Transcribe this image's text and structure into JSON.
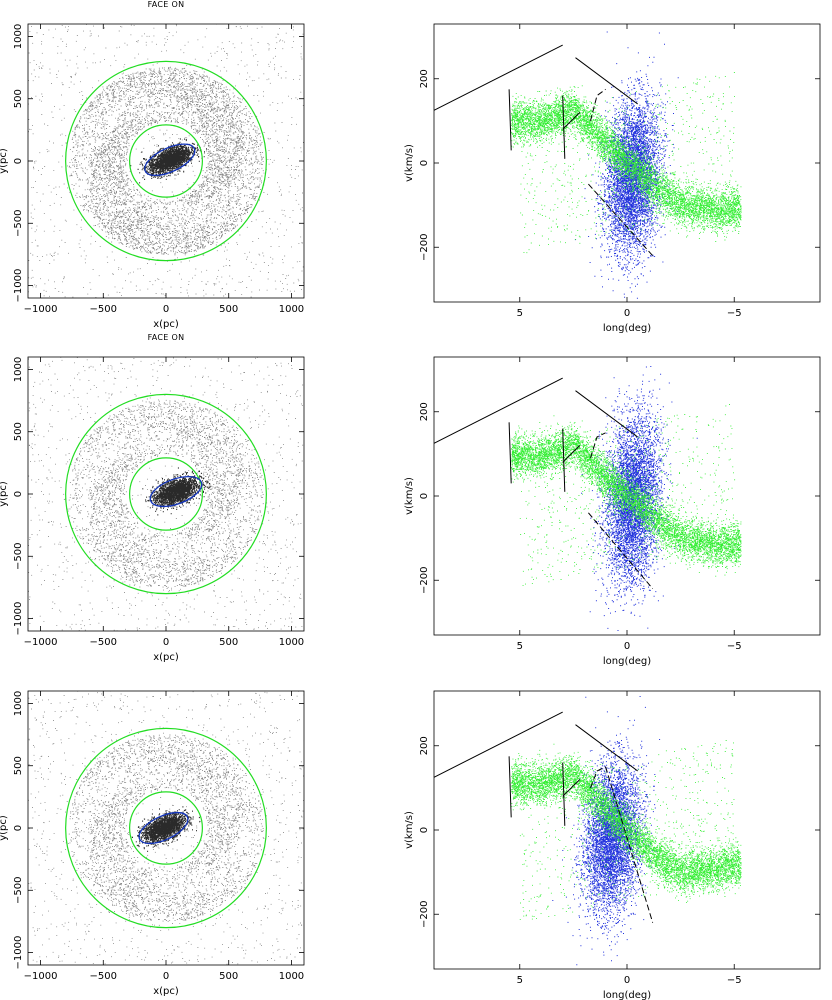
{
  "figure": {
    "colors": {
      "gas_particles": "#555555",
      "circles": "#22dd22",
      "bar_ellipse": "#1133bb",
      "co_points": "#2233dd",
      "hi_points": "#33ee33",
      "outline": "#000000"
    }
  },
  "chart_data": [
    {
      "type": "scatter",
      "panel": "face-on",
      "row": 1,
      "title": "FACE ON",
      "xlabel": "x(pc)",
      "ylabel": "y(pc)",
      "xlim": [
        -1100,
        1100
      ],
      "ylim": [
        -1100,
        1100
      ],
      "xticks": [
        -1000,
        -500,
        0,
        500,
        1000
      ],
      "yticks": [
        -1000,
        -500,
        0,
        500,
        1000
      ],
      "xticklabels": [
        "−1000",
        "−500",
        "0",
        "500",
        "1000"
      ],
      "yticklabels": [
        "−1000",
        "−500",
        "0",
        "500",
        "1000"
      ],
      "gas_disk": {
        "inner_radius": 320,
        "outer_radius": 780
      },
      "circles": [
        {
          "radius": 800
        },
        {
          "radius": 290
        }
      ],
      "bar_ellipse": {
        "center": [
          30,
          10
        ],
        "semi_major": 215,
        "semi_minor": 95,
        "angle_deg": 25
      }
    },
    {
      "type": "scatter",
      "panel": "l-v diagram",
      "row": 1,
      "xlabel": "long(deg)",
      "ylabel": "v(km/s)",
      "xlim": [
        9,
        -9
      ],
      "ylim": [
        -330,
        330
      ],
      "xticks": [
        5,
        0,
        -5
      ],
      "yticks": [
        -200,
        0,
        200
      ],
      "xticklabels": [
        "5",
        "0",
        "−5"
      ],
      "yticklabels": [
        "−200",
        "0",
        "200"
      ],
      "green_band": [
        [
          4.0,
          100
        ],
        [
          2.5,
          125
        ],
        [
          1.0,
          45
        ],
        [
          0.0,
          0
        ],
        [
          -1.0,
          -45
        ],
        [
          -2.5,
          -100
        ],
        [
          -4.5,
          -115
        ]
      ],
      "blue_cloud": {
        "l_range": [
          1.0,
          -1.5
        ],
        "v_range": [
          -230,
          160
        ]
      },
      "solid_lines": [
        [
          [
            9.0,
            125
          ],
          [
            3.0,
            280
          ]
        ],
        [
          [
            2.4,
            250
          ],
          [
            -0.5,
            140
          ]
        ],
        [
          [
            5.5,
            175
          ],
          [
            5.4,
            30
          ]
        ],
        [
          [
            3.0,
            160
          ],
          [
            2.9,
            10
          ]
        ],
        [
          [
            3.0,
            80
          ],
          [
            2.2,
            120
          ]
        ]
      ],
      "dashed_lines": [
        [
          [
            1.7,
            100
          ],
          [
            1.4,
            160
          ],
          [
            1.0,
            175
          ]
        ],
        [
          [
            1.8,
            -50
          ],
          [
            -1.2,
            -220
          ]
        ]
      ]
    },
    {
      "type": "scatter",
      "panel": "face-on",
      "row": 2,
      "title": "FACE ON",
      "xlabel": "x(pc)",
      "ylabel": "y(pc)",
      "xlim": [
        -1100,
        1100
      ],
      "ylim": [
        -1100,
        1100
      ],
      "xticks": [
        -1000,
        -500,
        0,
        500,
        1000
      ],
      "yticks": [
        -1000,
        -500,
        0,
        500,
        1000
      ],
      "xticklabels": [
        "−1000",
        "−500",
        "0",
        "500",
        "1000"
      ],
      "yticklabels": [
        "−1000",
        "−500",
        "0",
        "500",
        "1000"
      ],
      "gas_disk": {
        "inner_radius": 320,
        "outer_radius": 780
      },
      "circles": [
        {
          "radius": 800
        },
        {
          "radius": 290
        }
      ],
      "bar_ellipse": {
        "center": [
          80,
          20
        ],
        "semi_major": 215,
        "semi_minor": 100,
        "angle_deg": 20
      }
    },
    {
      "type": "scatter",
      "panel": "l-v diagram",
      "row": 2,
      "xlabel": "long(deg)",
      "ylabel": "v(km/s)",
      "xlim": [
        9,
        -9
      ],
      "ylim": [
        -330,
        330
      ],
      "xticks": [
        5,
        0,
        -5
      ],
      "yticks": [
        -200,
        0,
        200
      ],
      "xticklabels": [
        "5",
        "0",
        "−5"
      ],
      "yticklabels": [
        "−200",
        "0",
        "200"
      ],
      "green_band": [
        [
          4.0,
          95
        ],
        [
          2.5,
          120
        ],
        [
          1.0,
          40
        ],
        [
          0.0,
          0
        ],
        [
          -1.0,
          -40
        ],
        [
          -2.5,
          -100
        ],
        [
          -4.5,
          -120
        ]
      ],
      "blue_cloud": {
        "l_range": [
          1.0,
          -1.5
        ],
        "v_range": [
          -220,
          200
        ]
      },
      "solid_lines": [
        [
          [
            9.0,
            125
          ],
          [
            3.0,
            280
          ]
        ],
        [
          [
            2.4,
            250
          ],
          [
            -0.5,
            140
          ]
        ],
        [
          [
            5.5,
            175
          ],
          [
            5.4,
            30
          ]
        ],
        [
          [
            3.0,
            160
          ],
          [
            2.9,
            10
          ]
        ],
        [
          [
            3.0,
            80
          ],
          [
            2.2,
            120
          ]
        ]
      ],
      "dashed_lines": [
        [
          [
            1.7,
            90
          ],
          [
            1.4,
            140
          ],
          [
            1.0,
            150
          ]
        ],
        [
          [
            1.8,
            -40
          ],
          [
            -1.2,
            -220
          ]
        ]
      ]
    },
    {
      "type": "scatter",
      "panel": "face-on",
      "row": 3,
      "xlabel": "x(pc)",
      "ylabel": "y(pc)",
      "xlim": [
        -1100,
        1100
      ],
      "ylim": [
        -1100,
        1100
      ],
      "xticks": [
        -1000,
        -500,
        0,
        500,
        1000
      ],
      "yticks": [
        -1000,
        -500,
        0,
        500,
        1000
      ],
      "xticklabels": [
        "−1000",
        "−500",
        "0",
        "500",
        "1000"
      ],
      "yticklabels": [
        "−1000",
        "−500",
        "0",
        "500",
        "1000"
      ],
      "gas_disk": {
        "inner_radius": 320,
        "outer_radius": 780
      },
      "circles": [
        {
          "radius": 800
        },
        {
          "radius": 290
        }
      ],
      "bar_ellipse": {
        "center": [
          -20,
          0
        ],
        "semi_major": 210,
        "semi_minor": 95,
        "angle_deg": 25
      }
    },
    {
      "type": "scatter",
      "panel": "l-v diagram",
      "row": 3,
      "xlabel": "long(deg)",
      "ylabel": "v(km/s)",
      "xlim": [
        9,
        -9
      ],
      "ylim": [
        -330,
        330
      ],
      "xticks": [
        5,
        0,
        -5
      ],
      "yticks": [
        -200,
        0,
        200
      ],
      "xticklabels": [
        "5",
        "0",
        "−5"
      ],
      "yticklabels": [
        "−200",
        "0",
        "200"
      ],
      "green_band": [
        [
          4.0,
          110
        ],
        [
          2.5,
          130
        ],
        [
          1.0,
          50
        ],
        [
          0.0,
          0
        ],
        [
          -1.0,
          -50
        ],
        [
          -2.5,
          -100
        ],
        [
          -4.5,
          -90
        ]
      ],
      "blue_cloud": {
        "l_range": [
          2.0,
          -0.6
        ],
        "v_range": [
          -210,
          170
        ]
      },
      "solid_lines": [
        [
          [
            9.0,
            125
          ],
          [
            3.0,
            280
          ]
        ],
        [
          [
            2.4,
            250
          ],
          [
            -0.5,
            140
          ]
        ],
        [
          [
            5.5,
            175
          ],
          [
            5.4,
            30
          ]
        ],
        [
          [
            3.0,
            160
          ],
          [
            2.9,
            10
          ]
        ],
        [
          [
            3.0,
            80
          ],
          [
            2.2,
            120
          ]
        ]
      ],
      "dashed_lines": [
        [
          [
            1.7,
            100
          ],
          [
            1.4,
            140
          ],
          [
            1.0,
            150
          ]
        ],
        [
          [
            1.0,
            150
          ],
          [
            -1.2,
            -220
          ]
        ]
      ]
    }
  ]
}
